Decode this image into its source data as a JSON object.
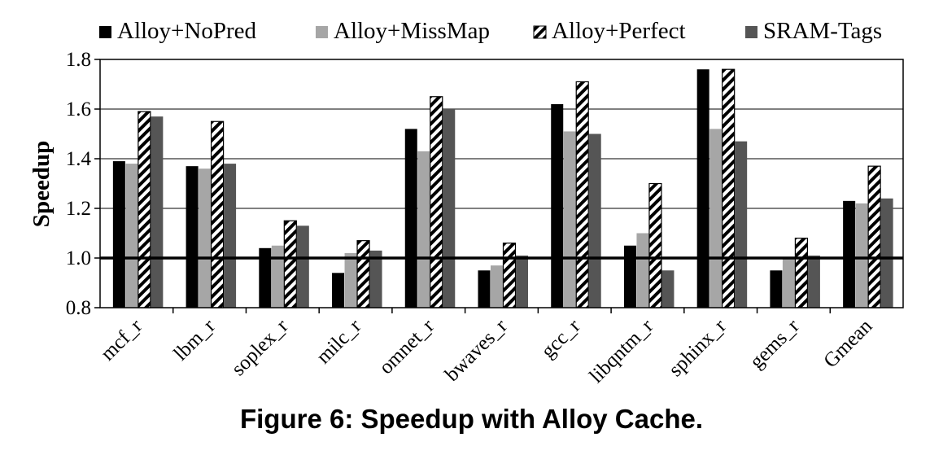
{
  "chart_data": {
    "type": "bar",
    "categories": [
      "mcf_r",
      "lbm_r",
      "soplex_r",
      "milc_r",
      "omnet_r",
      "bwaves_r",
      "gcc_r",
      "libqntm_r",
      "sphinx_r",
      "gems_r",
      "Gmean"
    ],
    "series": [
      {
        "name": "Alloy+NoPred",
        "color": "#000000",
        "pattern": "solid",
        "values": [
          1.39,
          1.37,
          1.04,
          0.94,
          1.52,
          0.95,
          1.62,
          1.05,
          1.76,
          0.95,
          1.23
        ]
      },
      {
        "name": "Alloy+MissMap",
        "color": "#a6a6a6",
        "pattern": "solid",
        "values": [
          1.38,
          1.36,
          1.05,
          1.02,
          1.43,
          0.97,
          1.51,
          1.1,
          1.52,
          1.0,
          1.22
        ]
      },
      {
        "name": "Alloy+Perfect",
        "color": "#000000",
        "pattern": "diagonal-stripes",
        "values": [
          1.59,
          1.55,
          1.15,
          1.07,
          1.65,
          1.06,
          1.71,
          1.3,
          1.76,
          1.08,
          1.37
        ]
      },
      {
        "name": "SRAM-Tags",
        "color": "#555555",
        "pattern": "solid",
        "values": [
          1.57,
          1.38,
          1.13,
          1.03,
          1.6,
          1.01,
          1.5,
          0.95,
          1.47,
          1.01,
          1.24
        ]
      }
    ],
    "ylabel": "Speedup",
    "ylim": [
      0.8,
      1.8
    ],
    "yticks": [
      "0.8",
      "1.0",
      "1.2",
      "1.4",
      "1.6",
      "1.8"
    ],
    "reference_line": 1.0,
    "grid": true,
    "legend_position": "top",
    "caption": "Figure 6: Speedup with Alloy Cache."
  }
}
